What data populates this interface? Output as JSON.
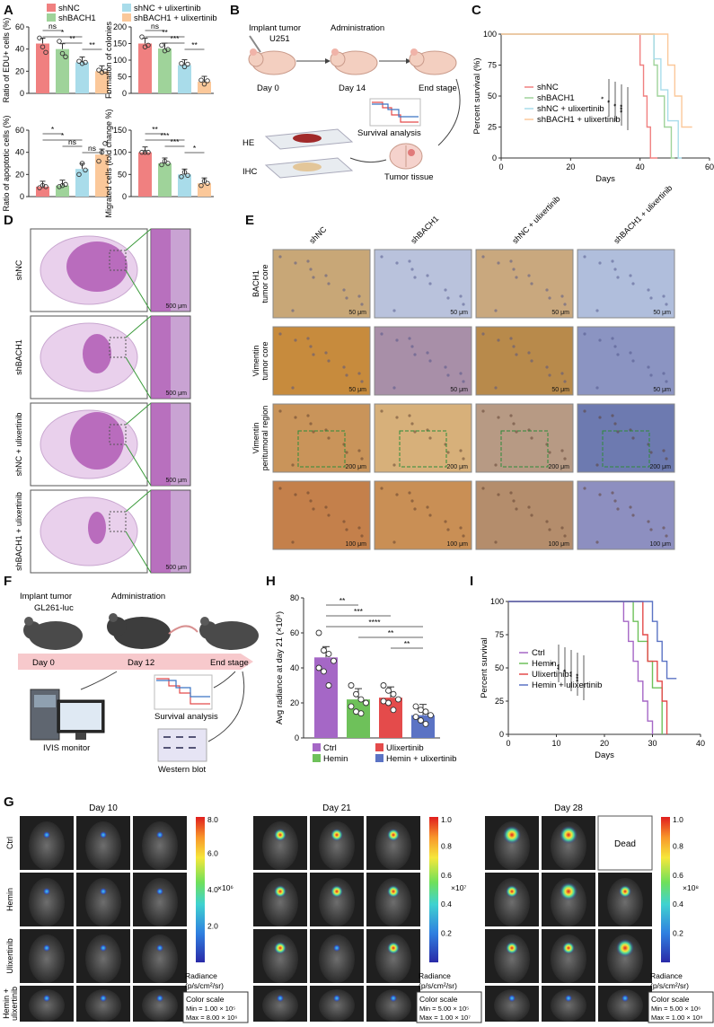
{
  "panels": {
    "A": "A",
    "B": "B",
    "C": "C",
    "D": "D",
    "E": "E",
    "F": "F",
    "G": "G",
    "H": "H",
    "I": "I"
  },
  "colors": {
    "shNC": "#f08080",
    "shBACH1": "#9fd39a",
    "shNCulix": "#a9dcea",
    "shBACH1ulix": "#fbc89a",
    "ctrl": "#a567c6",
    "hemin": "#6ec15a",
    "ulix": "#e44b4b",
    "heminulix": "#5b73c4",
    "he": "#b05ab5",
    "ihcBrown": "#b77b3a",
    "ihcBlue": "#7e8fbd"
  },
  "A": {
    "legend": [
      "shNC",
      "shBACH1",
      "shNC + ulixertinib",
      "shBACH1 + ulixertinib"
    ],
    "charts": [
      {
        "ylabel": "Ratio of EDU+ cells (%)",
        "yticks": [
          "0",
          "20",
          "40",
          "60"
        ],
        "ymax": 60,
        "values": [
          45,
          40,
          28,
          20
        ],
        "points": [
          [
            50,
            42,
            37
          ],
          [
            47,
            36,
            33
          ],
          [
            29,
            27,
            28
          ],
          [
            21,
            19,
            20
          ]
        ],
        "sig": [
          "ns",
          "*",
          "**",
          "**"
        ]
      },
      {
        "ylabel": "Formation of colonies",
        "yticks": [
          "0",
          "50",
          "100",
          "150",
          "200"
        ],
        "ymax": 200,
        "values": [
          150,
          135,
          85,
          35
        ],
        "points": [
          [
            170,
            140,
            145
          ],
          [
            145,
            128,
            132
          ],
          [
            90,
            80,
            88
          ],
          [
            40,
            28,
            38
          ]
        ],
        "sig": [
          "ns",
          "**",
          "***",
          "**"
        ]
      },
      {
        "ylabel": "Ratio of apoptotic cells (%)",
        "yticks": [
          "0",
          "20",
          "40",
          "60"
        ],
        "ymax": 60,
        "values": [
          9,
          10,
          25,
          38
        ],
        "points": [
          [
            8,
            10,
            9
          ],
          [
            9,
            10,
            11
          ],
          [
            20,
            30,
            24
          ],
          [
            32,
            40,
            48
          ]
        ],
        "sig": [
          "*",
          "*",
          "ns",
          "ns"
        ]
      },
      {
        "ylabel": "Migrated cells (fold change %)",
        "yticks": [
          "0",
          "50",
          "100",
          "150"
        ],
        "ymax": 150,
        "values": [
          100,
          75,
          50,
          30
        ],
        "points": [
          [
            100,
            100,
            100
          ],
          [
            72,
            80,
            75
          ],
          [
            45,
            55,
            48
          ],
          [
            25,
            35,
            30
          ]
        ],
        "sig": [
          "**",
          "***",
          "***",
          "*"
        ]
      }
    ]
  },
  "B": {
    "implant": "Implant tumor",
    "cell": "U251",
    "admin": "Administration",
    "day0": "Day 0",
    "day14": "Day 14",
    "end": "End stage",
    "survival": "Survival analysis",
    "tissue": "Tumor tissue",
    "he": "HE",
    "ihc": "IHC"
  },
  "C": {
    "ylabel": "Percent survival (%)",
    "xlabel": "Days",
    "yticks": [
      "0",
      "25",
      "50",
      "75",
      "100"
    ],
    "xticks": [
      "0",
      "20",
      "40",
      "60"
    ],
    "xmax": 60,
    "ymax": 100,
    "series": [
      {
        "name": "shNC",
        "key": "shNC",
        "steps": [
          [
            0,
            100
          ],
          [
            40,
            100
          ],
          [
            40,
            75
          ],
          [
            41,
            75
          ],
          [
            41,
            50
          ],
          [
            42,
            50
          ],
          [
            42,
            25
          ],
          [
            43,
            25
          ],
          [
            43,
            0
          ],
          [
            45,
            0
          ]
        ]
      },
      {
        "name": "shBACH1",
        "key": "shBACH1",
        "steps": [
          [
            0,
            100
          ],
          [
            44,
            100
          ],
          [
            44,
            75
          ],
          [
            45,
            75
          ],
          [
            45,
            50
          ],
          [
            47,
            50
          ],
          [
            47,
            25
          ],
          [
            49,
            25
          ],
          [
            49,
            0
          ],
          [
            50,
            0
          ]
        ]
      },
      {
        "name": "shNC + ulixertinib",
        "key": "shNCulix",
        "steps": [
          [
            0,
            100
          ],
          [
            44,
            100
          ],
          [
            44,
            80
          ],
          [
            46,
            80
          ],
          [
            46,
            55
          ],
          [
            48,
            55
          ],
          [
            48,
            30
          ],
          [
            51,
            30
          ],
          [
            51,
            0
          ],
          [
            52,
            0
          ]
        ]
      },
      {
        "name": "shBACH1 + ulixertinib",
        "key": "shBACH1ulix",
        "steps": [
          [
            0,
            100
          ],
          [
            48,
            100
          ],
          [
            48,
            75
          ],
          [
            50,
            75
          ],
          [
            50,
            50
          ],
          [
            52,
            50
          ],
          [
            52,
            25
          ],
          [
            55,
            25
          ]
        ]
      }
    ],
    "sig": [
      "*",
      "*",
      "*",
      "***"
    ]
  },
  "D": {
    "rows": [
      "shNC",
      "shBACH1",
      "shNC + ulixertinib",
      "shBACH1 + ulixertinib"
    ],
    "scale": "500 μm"
  },
  "E": {
    "cols": [
      "shNC",
      "shBACH1",
      "shNC + ulixertinib",
      "shBACH1 + ulixertinib"
    ],
    "rows": [
      "BACH1 tumor core",
      "Vimentin tumor core",
      "Vimentin peritumoral region",
      ""
    ],
    "scales": [
      "50 μm",
      "50 μm",
      "200 μm",
      "100 μm"
    ]
  },
  "F": {
    "implant": "Implant tumor",
    "cell": "GL261-luc",
    "admin": "Administration",
    "day0": "Day 0",
    "day12": "Day 12",
    "end": "End stage",
    "survival": "Survival analysis",
    "ivis": "IVIS monitor",
    "wb": "Western blot"
  },
  "H": {
    "ylabel": "Avg radiance at day 21 (×10⁶)",
    "yticks": [
      "0",
      "20",
      "40",
      "60",
      "80"
    ],
    "ymax": 80,
    "groups": [
      "Ctrl",
      "Hemin",
      "Ulixertinib",
      "Hemin + ulixertinib"
    ],
    "keys": [
      "ctrl",
      "hemin",
      "ulix",
      "heminulix"
    ],
    "values": [
      46,
      22,
      23,
      13
    ],
    "points": [
      [
        60,
        50,
        48,
        44,
        40,
        38,
        30
      ],
      [
        30,
        25,
        22,
        20,
        18,
        15,
        14
      ],
      [
        30,
        27,
        25,
        22,
        21,
        20,
        16
      ],
      [
        18,
        16,
        15,
        13,
        12,
        10,
        8
      ]
    ],
    "sig": [
      "**",
      "***",
      "****",
      "**",
      "**"
    ]
  },
  "I": {
    "ylabel": "Percent survival",
    "xlabel": "Days",
    "yticks": [
      "0",
      "25",
      "50",
      "75",
      "100"
    ],
    "xticks": [
      "0",
      "10",
      "20",
      "30",
      "40"
    ],
    "xmax": 40,
    "ymax": 100,
    "series": [
      {
        "name": "Ctrl",
        "key": "ctrl",
        "steps": [
          [
            0,
            100
          ],
          [
            24,
            100
          ],
          [
            24,
            85
          ],
          [
            25,
            85
          ],
          [
            25,
            70
          ],
          [
            26,
            70
          ],
          [
            26,
            55
          ],
          [
            27,
            55
          ],
          [
            27,
            40
          ],
          [
            28,
            40
          ],
          [
            28,
            25
          ],
          [
            29,
            25
          ],
          [
            29,
            10
          ],
          [
            30,
            10
          ],
          [
            30,
            0
          ]
        ]
      },
      {
        "name": "Hemin",
        "key": "hemin",
        "steps": [
          [
            0,
            100
          ],
          [
            26,
            100
          ],
          [
            26,
            85
          ],
          [
            27,
            85
          ],
          [
            27,
            70
          ],
          [
            29,
            70
          ],
          [
            29,
            55
          ],
          [
            30,
            55
          ],
          [
            30,
            35
          ],
          [
            32,
            35
          ],
          [
            32,
            0
          ]
        ]
      },
      {
        "name": "Ulixertinib",
        "key": "ulix",
        "steps": [
          [
            0,
            100
          ],
          [
            28,
            100
          ],
          [
            28,
            75
          ],
          [
            29,
            75
          ],
          [
            29,
            55
          ],
          [
            31,
            55
          ],
          [
            31,
            40
          ],
          [
            32,
            40
          ],
          [
            32,
            25
          ],
          [
            33,
            25
          ],
          [
            33,
            0
          ]
        ]
      },
      {
        "name": "Hemin + ulixertinib",
        "key": "heminulix",
        "steps": [
          [
            0,
            100
          ],
          [
            30,
            100
          ],
          [
            30,
            85
          ],
          [
            31,
            85
          ],
          [
            31,
            70
          ],
          [
            32,
            70
          ],
          [
            32,
            55
          ],
          [
            33,
            55
          ],
          [
            33,
            42
          ],
          [
            35,
            42
          ]
        ]
      }
    ],
    "sig": [
      "*",
      "**",
      "*",
      "**",
      "***"
    ]
  },
  "G": {
    "days": [
      "Day 10",
      "Day 21",
      "Day 28"
    ],
    "rows": [
      "Ctrl",
      "Hemin",
      "Ulixertinib",
      "Hemin + ulixertinib"
    ],
    "dead": "Dead",
    "scales": [
      {
        "top": "8.0",
        "ticks": [
          "6.0",
          "4.0",
          "2.0"
        ],
        "exp": "×10⁶",
        "min": "Min = 1.00 × 10⁵",
        "max": "Max = 8.00 × 10⁶"
      },
      {
        "top": "1.0",
        "ticks": [
          "0.8",
          "0.6",
          "0.4",
          "0.2"
        ],
        "exp": "×10⁷",
        "min": "Min = 5.00 × 10⁵",
        "max": "Max = 1.00 × 10⁷"
      },
      {
        "top": "1.0",
        "ticks": [
          "0.8",
          "0.6",
          "0.4",
          "0.2"
        ],
        "exp": "×10⁸",
        "min": "Min = 5.00 × 10⁶",
        "max": "Max = 1.00 × 10⁸"
      }
    ],
    "radiance": "Radiance",
    "radunit": "(p/s/cm²/sr)",
    "colorscale": "Color scale"
  }
}
